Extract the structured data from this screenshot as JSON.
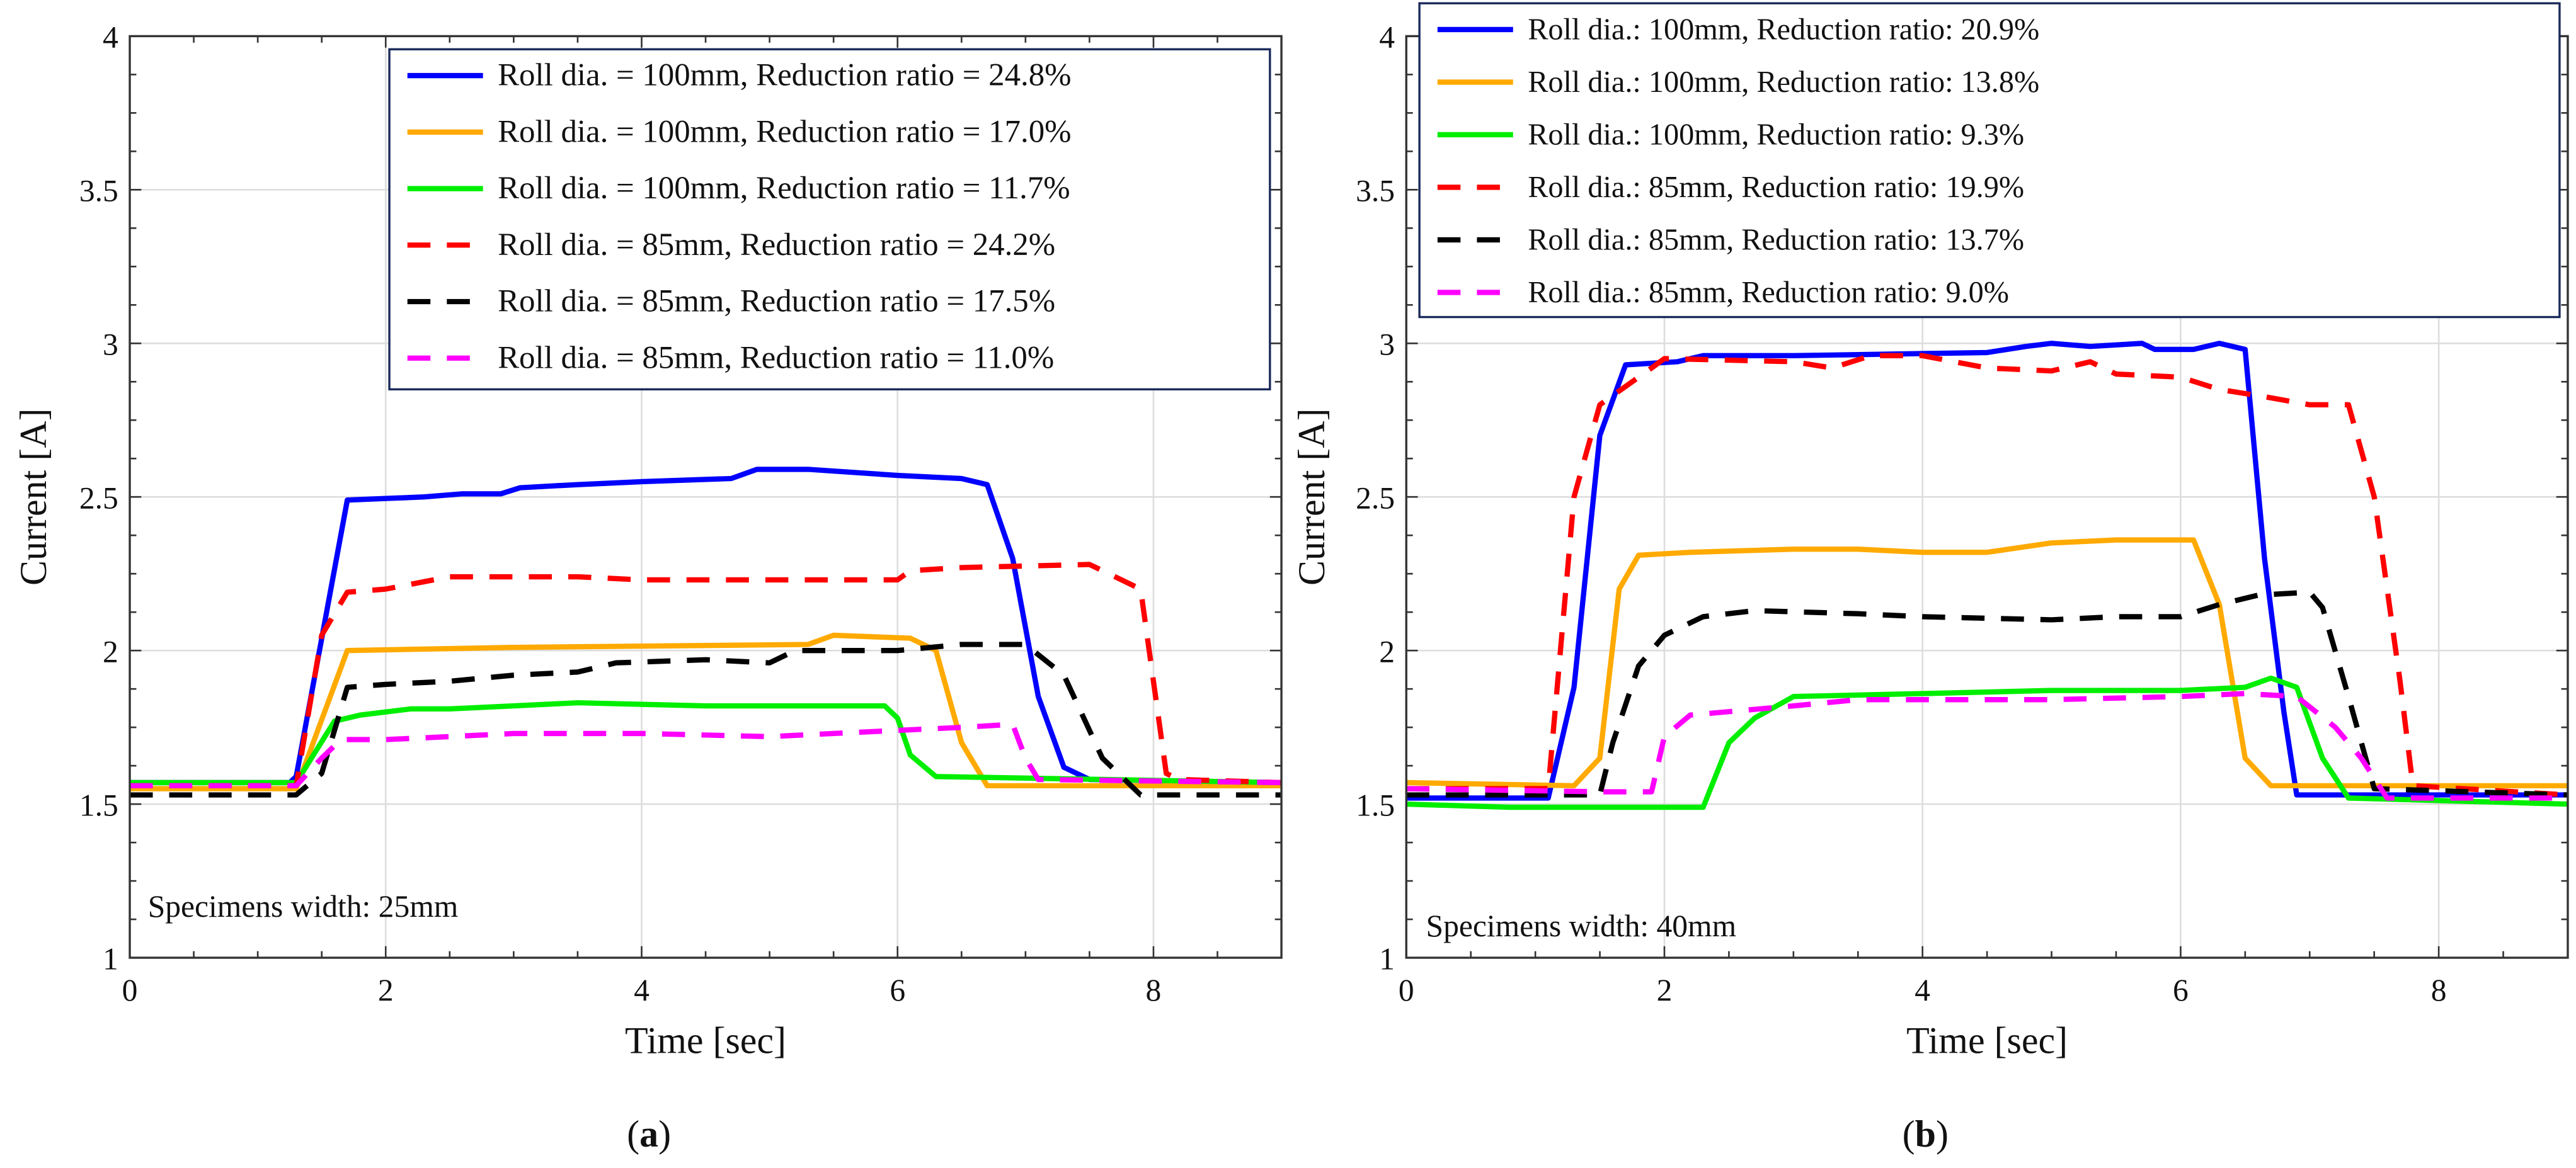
{
  "colors": {
    "blue": "#0000ff",
    "orange": "#ffaa00",
    "green": "#00ee00",
    "red": "#ff0000",
    "black": "#000000",
    "magenta": "#ff00ff",
    "grid": "#dddddd",
    "legend_border": "#1a2a5a"
  },
  "chart_data": [
    {
      "type": "line",
      "caption": "(a)",
      "caption_letter": "a",
      "annotation": "Specimens width: 25mm",
      "xlabel": "Time [sec]",
      "ylabel": "Current [A]",
      "xlim": [
        0,
        9
      ],
      "ylim": [
        1,
        4
      ],
      "xticks": [
        "0",
        "2",
        "4",
        "6",
        "8"
      ],
      "yticks": [
        "1",
        "1.5",
        "2",
        "2.5",
        "3",
        "3.5",
        "4"
      ],
      "grid": true,
      "legend_position": "top-right",
      "series": [
        {
          "name": "Roll dia. = 100mm, Reduction ratio = 24.8%",
          "color": "blue",
          "style": "solid",
          "x": [
            0,
            1.25,
            1.3,
            1.7,
            2.3,
            2.6,
            2.9,
            3.05,
            3.5,
            4,
            4.7,
            4.9,
            5.3,
            6,
            6.5,
            6.7,
            6.9,
            7.1,
            7.3,
            7.5,
            9
          ],
          "y": [
            1.57,
            1.57,
            1.59,
            2.49,
            2.5,
            2.51,
            2.51,
            2.53,
            2.54,
            2.55,
            2.56,
            2.59,
            2.59,
            2.57,
            2.56,
            2.54,
            2.3,
            1.85,
            1.62,
            1.58,
            1.57
          ]
        },
        {
          "name": "Roll dia. = 100mm, Reduction ratio = 17.0%",
          "color": "orange",
          "style": "solid",
          "x": [
            0,
            1.3,
            1.7,
            3,
            5.3,
            5.5,
            6.1,
            6.3,
            6.5,
            6.7,
            9
          ],
          "y": [
            1.55,
            1.55,
            2.0,
            2.01,
            2.02,
            2.05,
            2.04,
            2.0,
            1.7,
            1.56,
            1.56
          ]
        },
        {
          "name": "Roll dia. = 100mm, Reduction ratio = 11.7%",
          "color": "green",
          "style": "solid",
          "x": [
            0,
            1.3,
            1.6,
            1.8,
            2.2,
            2.5,
            3,
            3.5,
            4.5,
            5.9,
            6.0,
            6.1,
            6.3,
            9
          ],
          "y": [
            1.57,
            1.57,
            1.77,
            1.79,
            1.81,
            1.81,
            1.82,
            1.83,
            1.82,
            1.82,
            1.78,
            1.66,
            1.59,
            1.57
          ]
        },
        {
          "name": "Roll dia. = 85mm, Reduction ratio = 24.2%",
          "color": "red",
          "style": "dashed",
          "x": [
            0,
            1.3,
            1.5,
            1.7,
            2,
            2.5,
            3.5,
            4,
            6,
            6.1,
            6.5,
            7.5,
            7.9,
            8.1,
            8.2,
            9
          ],
          "y": [
            1.56,
            1.56,
            2.05,
            2.19,
            2.2,
            2.24,
            2.24,
            2.23,
            2.23,
            2.26,
            2.27,
            2.28,
            2.2,
            1.6,
            1.58,
            1.57
          ]
        },
        {
          "name": "Roll dia. = 85mm, Reduction ratio = 17.5%",
          "color": "black",
          "style": "dashed",
          "x": [
            0,
            1.3,
            1.5,
            1.7,
            2,
            2.5,
            3,
            3.5,
            3.8,
            4.5,
            5,
            5.2,
            6,
            6.5,
            7,
            7.3,
            7.6,
            7.9,
            9
          ],
          "y": [
            1.53,
            1.53,
            1.6,
            1.88,
            1.89,
            1.9,
            1.92,
            1.93,
            1.96,
            1.97,
            1.96,
            2.0,
            2.0,
            2.02,
            2.02,
            1.92,
            1.65,
            1.53,
            1.53
          ]
        },
        {
          "name": "Roll dia. = 85mm, Reduction ratio = 11.0%",
          "color": "magenta",
          "style": "dashed",
          "x": [
            0,
            1.3,
            1.5,
            1.65,
            2,
            2.5,
            3,
            4,
            5,
            6,
            6.5,
            6.9,
            7.0,
            7.1,
            9
          ],
          "y": [
            1.56,
            1.56,
            1.65,
            1.71,
            1.71,
            1.72,
            1.73,
            1.73,
            1.72,
            1.74,
            1.75,
            1.76,
            1.65,
            1.58,
            1.57
          ]
        }
      ]
    },
    {
      "type": "line",
      "caption": "(b)",
      "caption_letter": "b",
      "annotation": "Specimens width: 40mm",
      "xlabel": "Time [sec]",
      "ylabel": "Current [A]",
      "xlim": [
        0,
        9
      ],
      "ylim": [
        1,
        4
      ],
      "xticks": [
        "0",
        "2",
        "4",
        "6",
        "8"
      ],
      "yticks": [
        "1",
        "1.5",
        "2",
        "2.5",
        "3",
        "3.5",
        "4"
      ],
      "grid": true,
      "legend_position": "top-right",
      "series": [
        {
          "name": "Roll dia.: 100mm, Reduction ratio: 20.9%",
          "color": "blue",
          "style": "solid",
          "x": [
            0,
            1.1,
            1.3,
            1.5,
            1.7,
            2.1,
            2.3,
            3,
            4.5,
            4.8,
            5.0,
            5.3,
            5.7,
            5.8,
            6.1,
            6.3,
            6.5,
            6.65,
            6.8,
            6.9,
            9
          ],
          "y": [
            1.52,
            1.52,
            1.88,
            2.7,
            2.93,
            2.94,
            2.96,
            2.96,
            2.97,
            2.99,
            3.0,
            2.99,
            3.0,
            2.98,
            2.98,
            3.0,
            2.98,
            2.3,
            1.8,
            1.53,
            1.53
          ]
        },
        {
          "name": "Roll dia.: 100mm, Reduction ratio: 13.8%",
          "color": "orange",
          "style": "solid",
          "x": [
            0,
            1.3,
            1.5,
            1.65,
            1.8,
            2.2,
            3,
            3.5,
            4,
            4.5,
            5,
            5.5,
            6.1,
            6.3,
            6.5,
            6.7,
            9
          ],
          "y": [
            1.57,
            1.56,
            1.65,
            2.2,
            2.31,
            2.32,
            2.33,
            2.33,
            2.32,
            2.32,
            2.35,
            2.36,
            2.36,
            2.15,
            1.65,
            1.56,
            1.56
          ]
        },
        {
          "name": "Roll dia.: 100mm, Reduction ratio:  9.3%",
          "color": "green",
          "style": "solid",
          "x": [
            0,
            0.8,
            2.3,
            2.5,
            2.7,
            3,
            4,
            5,
            6,
            6.5,
            6.7,
            6.9,
            7.1,
            7.3,
            9
          ],
          "y": [
            1.5,
            1.49,
            1.49,
            1.7,
            1.78,
            1.85,
            1.86,
            1.87,
            1.87,
            1.88,
            1.91,
            1.88,
            1.65,
            1.52,
            1.5
          ]
        },
        {
          "name": "Roll dia.: 85mm, Reduction ratio: 19.9%",
          "color": "red",
          "style": "dashed",
          "x": [
            0,
            1.1,
            1.3,
            1.5,
            1.9,
            2,
            3,
            3.3,
            3.6,
            4,
            4.5,
            5,
            5.3,
            5.5,
            6,
            6.3,
            6.6,
            7,
            7.3,
            7.5,
            7.7,
            7.8,
            9
          ],
          "y": [
            1.55,
            1.55,
            2.5,
            2.8,
            2.92,
            2.95,
            2.94,
            2.92,
            2.96,
            2.96,
            2.92,
            2.91,
            2.94,
            2.9,
            2.89,
            2.85,
            2.83,
            2.8,
            2.8,
            2.5,
            1.9,
            1.56,
            1.53
          ]
        },
        {
          "name": "Roll dia.: 85mm, Reduction ratio: 13.7%",
          "color": "black",
          "style": "dashed",
          "x": [
            0,
            1.5,
            1.6,
            1.8,
            2.0,
            2.3,
            2.7,
            3.5,
            4,
            5,
            5.5,
            6,
            6.3,
            6.6,
            7,
            7.1,
            7.3,
            7.5,
            9
          ],
          "y": [
            1.53,
            1.53,
            1.7,
            1.95,
            2.05,
            2.11,
            2.13,
            2.12,
            2.11,
            2.1,
            2.11,
            2.11,
            2.15,
            2.18,
            2.19,
            2.14,
            1.85,
            1.55,
            1.53
          ]
        },
        {
          "name": "Roll dia.: 85mm, Reduction ratio: 9.0%",
          "color": "magenta",
          "style": "dashed",
          "x": [
            0,
            1.5,
            1.9,
            2.0,
            2.2,
            3,
            3.5,
            4,
            5,
            6,
            6.5,
            6.9,
            7.2,
            7.4,
            7.6,
            9
          ],
          "y": [
            1.55,
            1.54,
            1.54,
            1.72,
            1.79,
            1.82,
            1.84,
            1.84,
            1.84,
            1.85,
            1.86,
            1.85,
            1.75,
            1.65,
            1.52,
            1.52
          ]
        }
      ]
    }
  ]
}
